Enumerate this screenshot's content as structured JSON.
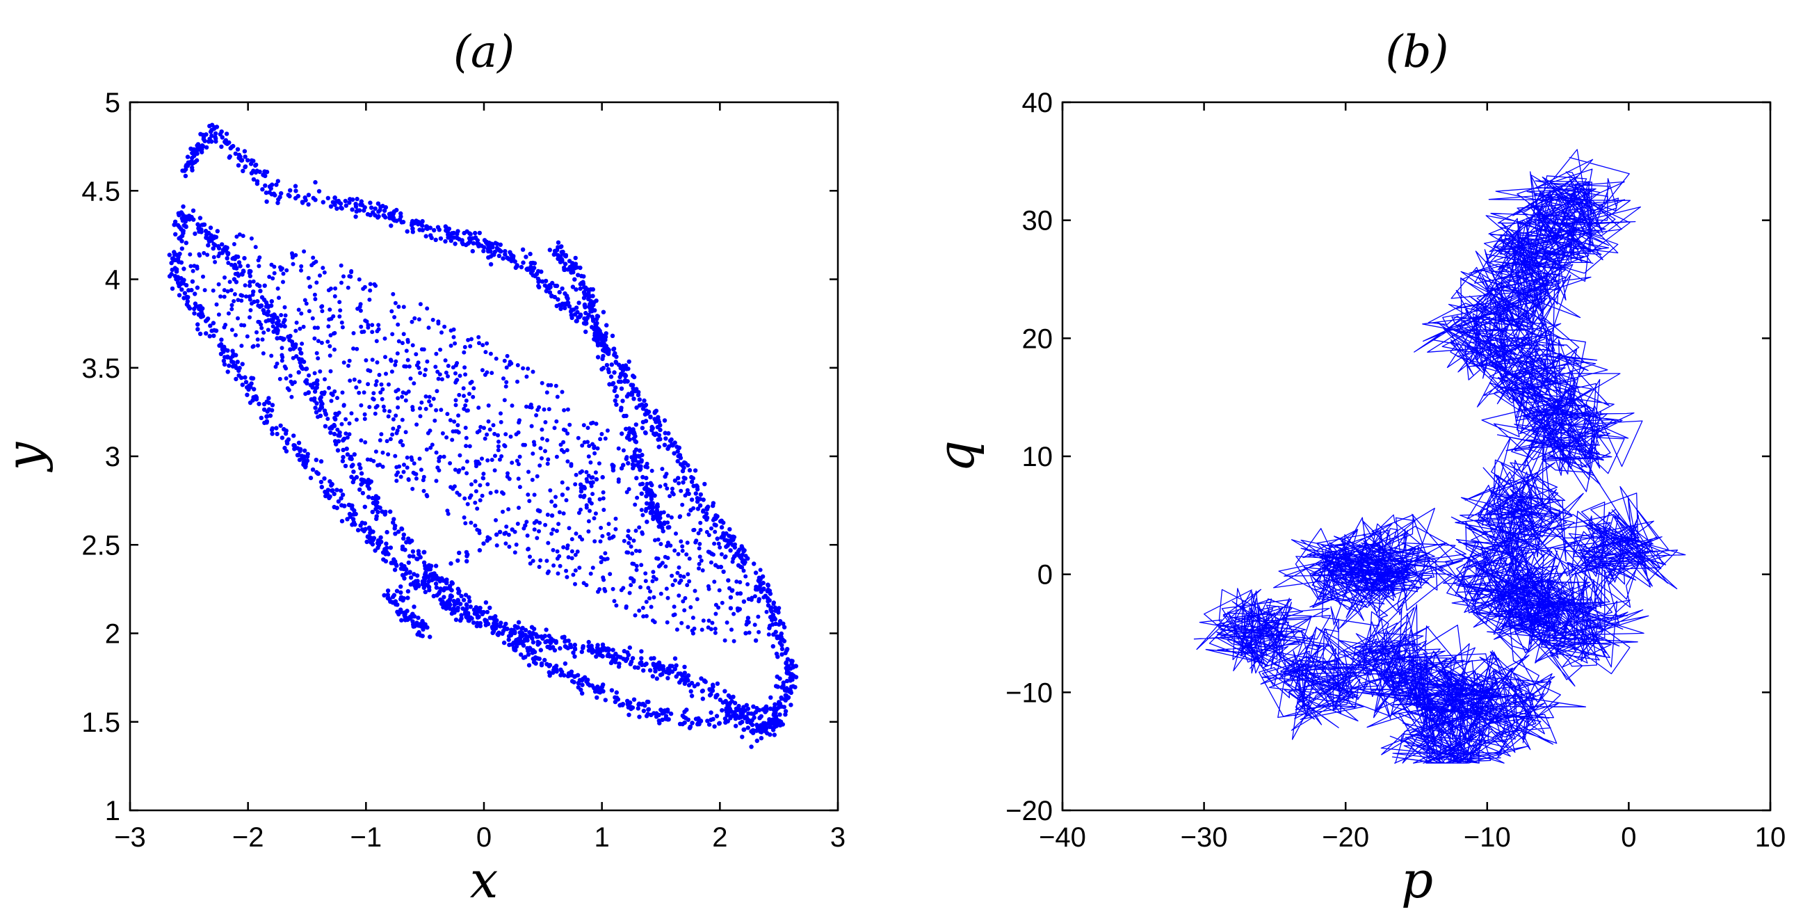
{
  "chart_data": [
    {
      "type": "scatter",
      "title": "(a)",
      "xlabel": "x",
      "ylabel": "y",
      "xlim": [
        -3,
        3
      ],
      "ylim": [
        1,
        5
      ],
      "xticks": [
        "−3",
        "−2",
        "−1",
        "0",
        "1",
        "2",
        "3"
      ],
      "yticks": [
        "1",
        "1.5",
        "2",
        "2.5",
        "3",
        "3.5",
        "4",
        "4.5",
        "5"
      ],
      "grid": false,
      "marker_color": "#0000ff",
      "marker": "dot",
      "structure_points": [
        [
          -2.55,
          4.6
        ],
        [
          -2.3,
          4.85
        ],
        [
          -1.8,
          4.5
        ],
        [
          -1.0,
          4.4
        ],
        [
          -0.5,
          4.3
        ],
        [
          0.0,
          4.2
        ],
        [
          0.4,
          4.05
        ],
        [
          0.8,
          3.8
        ],
        [
          1.2,
          3.45
        ],
        [
          1.6,
          3.05
        ],
        [
          2.0,
          2.6
        ],
        [
          2.4,
          2.2
        ],
        [
          2.6,
          1.8
        ],
        [
          2.5,
          1.5
        ],
        [
          2.3,
          1.45
        ],
        [
          2.0,
          1.65
        ],
        [
          1.5,
          1.8
        ],
        [
          1.0,
          1.9
        ],
        [
          0.5,
          1.95
        ],
        [
          0.1,
          2.05
        ],
        [
          -0.4,
          2.3
        ],
        [
          -0.9,
          2.7
        ],
        [
          -1.3,
          3.2
        ],
        [
          -1.7,
          3.7
        ],
        [
          -2.1,
          4.1
        ],
        [
          -2.55,
          4.4
        ],
        [
          -2.6,
          4.0
        ],
        [
          -2.2,
          3.6
        ],
        [
          -1.8,
          3.2
        ],
        [
          -1.3,
          2.8
        ],
        [
          -0.9,
          2.5
        ],
        [
          -0.4,
          2.2
        ],
        [
          0.0,
          2.05
        ],
        [
          0.6,
          1.8
        ],
        [
          1.2,
          1.6
        ],
        [
          1.8,
          1.5
        ],
        [
          2.6,
          1.6
        ],
        [
          0.6,
          4.2
        ],
        [
          0.9,
          3.9
        ],
        [
          1.0,
          3.6
        ],
        [
          1.5,
          2.6
        ],
        [
          1.3,
          3.0
        ],
        [
          -0.8,
          2.2
        ],
        [
          -0.5,
          2.0
        ]
      ]
    },
    {
      "type": "line",
      "title": "(b)",
      "xlabel": "p",
      "ylabel": "q",
      "xlim": [
        -40,
        10
      ],
      "ylim": [
        -20,
        40
      ],
      "xticks": [
        "−40",
        "−30",
        "−20",
        "−10",
        "0",
        "10"
      ],
      "yticks": [
        "−20",
        "−10",
        "0",
        "10",
        "20",
        "30",
        "40"
      ],
      "grid": false,
      "line_color": "#0000ff",
      "cluster_centers": [
        [
          -26,
          -5
        ],
        [
          -22,
          -9
        ],
        [
          -20,
          0
        ],
        [
          -17,
          1
        ],
        [
          -17,
          -8
        ],
        [
          -13,
          -10
        ],
        [
          -13,
          -14
        ],
        [
          -9,
          -11
        ],
        [
          -9,
          0
        ],
        [
          -8,
          5
        ],
        [
          -7,
          -3
        ],
        [
          -4,
          -4
        ],
        [
          -1,
          2
        ],
        [
          -4,
          12
        ],
        [
          -6,
          16
        ],
        [
          -10,
          20
        ],
        [
          -8,
          24
        ],
        [
          -6,
          28
        ],
        [
          -4,
          31
        ]
      ],
      "path_range": {
        "p": [
          -31,
          4
        ],
        "q": [
          -16,
          36
        ]
      }
    }
  ]
}
